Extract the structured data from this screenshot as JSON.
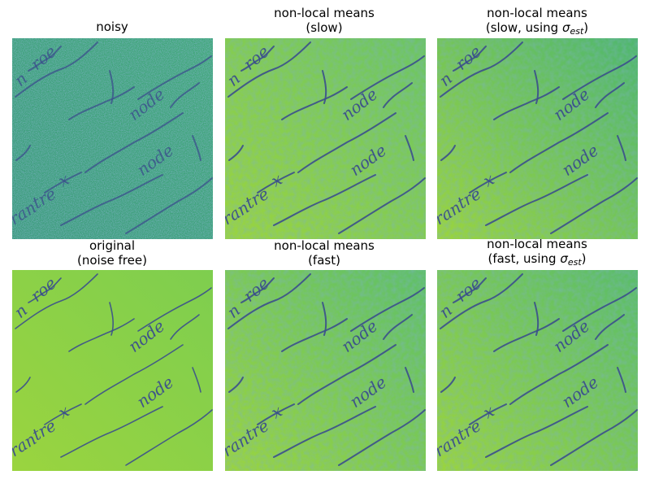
{
  "figure": {
    "colormap": "viridis",
    "panels": [
      {
        "id": "noisy",
        "title_lines": [
          "noisy"
        ],
        "base_color": "#3fa876",
        "noise": "heavy"
      },
      {
        "id": "nlm-slow",
        "title_lines": [
          "non-local means",
          "(slow)"
        ],
        "base_color": "#6cc464",
        "noise": "medium"
      },
      {
        "id": "nlm-slow-sigma",
        "title_lines": [
          "non-local means",
          "(slow, using "
        ],
        "sigma_symbol": "σ",
        "sigma_subscript": "est",
        "close_paren": ")",
        "base_color": "#4fb66f",
        "noise": "medium"
      },
      {
        "id": "original",
        "title_lines": [
          "original",
          "(noise free)"
        ],
        "base_color": "#7ece4f",
        "noise": "none"
      },
      {
        "id": "nlm-fast",
        "title_lines": [
          "non-local means",
          "(fast)"
        ],
        "base_color": "#5fbf69",
        "noise": "medium"
      },
      {
        "id": "nlm-fast-sigma",
        "title_lines": [
          "non-local means",
          "(fast, using "
        ],
        "sigma_symbol": "σ",
        "sigma_subscript": "est",
        "close_paren": ")",
        "base_color": "#5abc6b",
        "noise": "medium"
      }
    ],
    "handwriting": {
      "latin_words": [
        "node",
        "node",
        "tre",
        "x",
        "ran",
        "n",
        "roe"
      ],
      "ink_color": "#3b4f8c"
    }
  }
}
